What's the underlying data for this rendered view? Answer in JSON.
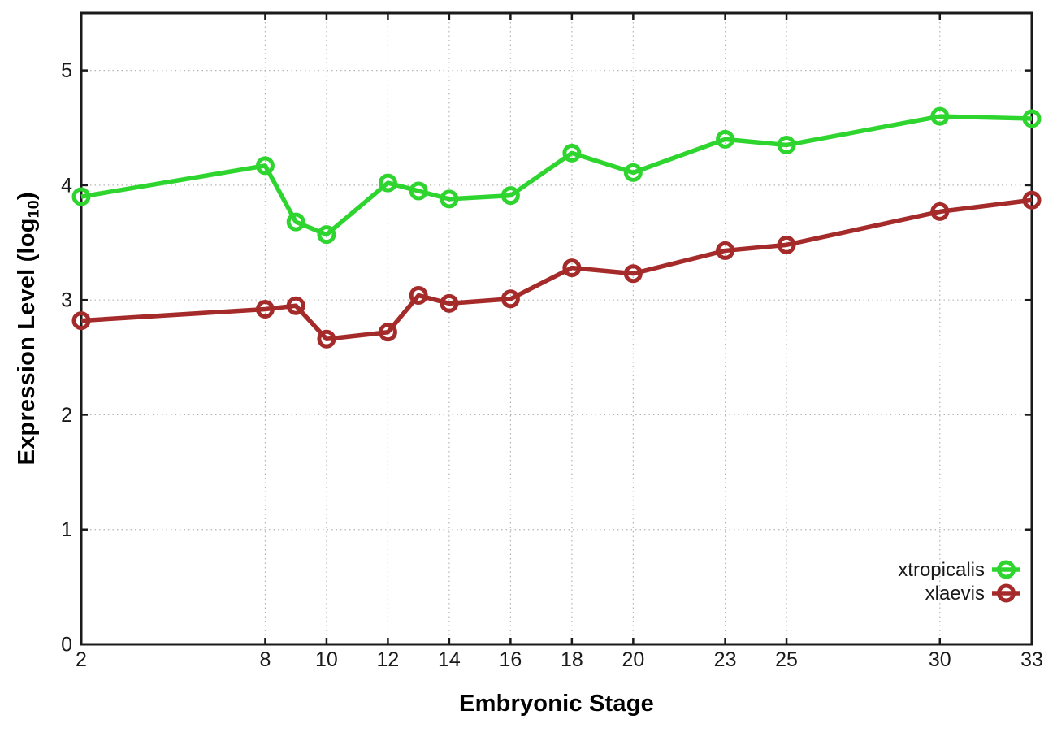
{
  "chart_data": {
    "type": "line",
    "title": "",
    "xlabel": "Embryonic Stage",
    "ylabel": "Expression Level (log10)",
    "ylabel_parts": {
      "prefix": "Expression Level (log",
      "sub": "10",
      "suffix": ")"
    },
    "x_ticks": [
      2,
      8,
      10,
      12,
      14,
      16,
      18,
      20,
      23,
      25,
      30,
      33
    ],
    "x_tick_labels": [
      "2",
      "8",
      "10",
      "12",
      "14",
      "16",
      "18",
      "20",
      "23",
      "25",
      "30",
      "33"
    ],
    "y_ticks": [
      0,
      1,
      2,
      3,
      4,
      5
    ],
    "y_tick_labels": [
      "0",
      "1",
      "2",
      "3",
      "4",
      "5"
    ],
    "xlim": [
      2,
      33
    ],
    "ylim": [
      0,
      5.5
    ],
    "grid": true,
    "legend_position": "inside-bottom-right",
    "axis_color": "#1a1a1a",
    "grid_color": "#b5b5b5",
    "x": [
      2,
      8,
      9,
      10,
      12,
      13,
      14,
      16,
      18,
      20,
      23,
      25,
      30,
      33
    ],
    "series": [
      {
        "name": "xtropicalis",
        "color": "#2FD52F",
        "values": [
          3.9,
          4.17,
          3.68,
          3.57,
          4.02,
          3.95,
          3.88,
          3.91,
          4.28,
          4.11,
          4.4,
          4.35,
          4.6,
          4.58
        ]
      },
      {
        "name": "xlaevis",
        "color": "#A52A2A",
        "values": [
          2.82,
          2.92,
          2.95,
          2.66,
          2.72,
          3.04,
          2.97,
          3.01,
          3.28,
          3.23,
          3.43,
          3.48,
          3.77,
          3.87
        ]
      }
    ]
  }
}
